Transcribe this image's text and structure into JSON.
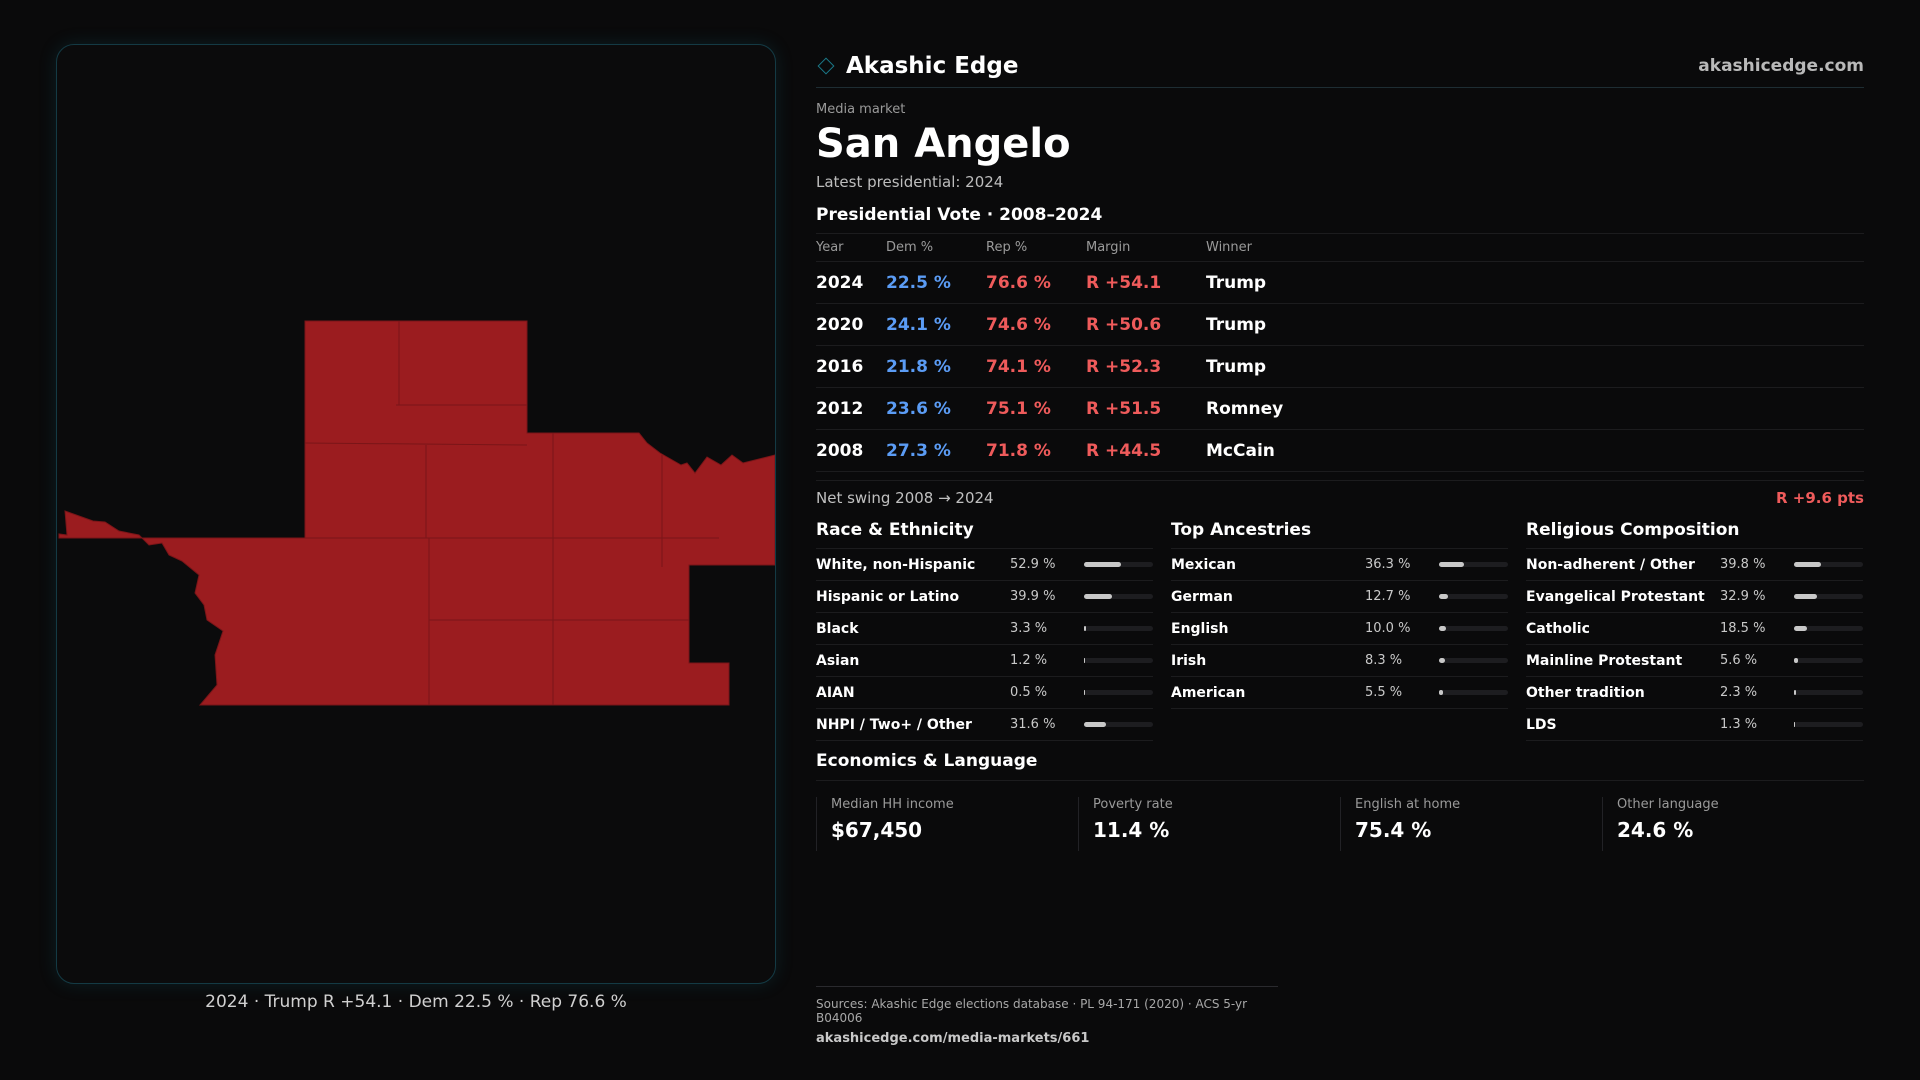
{
  "brand": {
    "name": "Akashic Edge",
    "site": "akashicedge.com",
    "icon": "diamond-icon",
    "accent": "#1b7a8a"
  },
  "market": {
    "kicker": "Media market",
    "name": "San Angelo",
    "latest": "Latest presidential: 2024"
  },
  "votes": {
    "title": "Presidential Vote · 2008–2024",
    "headers": {
      "year": "Year",
      "dem": "Dem %",
      "rep": "Rep %",
      "margin": "Margin",
      "winner": "Winner"
    },
    "rows": [
      {
        "year": "2024",
        "dem": "22.5 %",
        "rep": "76.6 %",
        "margin": "R +54.1",
        "winner": "Trump"
      },
      {
        "year": "2020",
        "dem": "24.1 %",
        "rep": "74.6 %",
        "margin": "R +50.6",
        "winner": "Trump"
      },
      {
        "year": "2016",
        "dem": "21.8 %",
        "rep": "74.1 %",
        "margin": "R +52.3",
        "winner": "Trump"
      },
      {
        "year": "2012",
        "dem": "23.6 %",
        "rep": "75.1 %",
        "margin": "R +51.5",
        "winner": "Romney"
      },
      {
        "year": "2008",
        "dem": "27.3 %",
        "rep": "71.8 %",
        "margin": "R +44.5",
        "winner": "McCain"
      }
    ],
    "colors": {
      "dem": "#5b9cf5",
      "rep": "#ef5b5b"
    }
  },
  "swing": {
    "label": "Net swing 2008 → 2024",
    "value": "R +9.6 pts"
  },
  "race": {
    "title": "Race & Ethnicity",
    "rows": [
      {
        "label": "White, non-Hispanic",
        "value": "52.9 %",
        "pct": 52.9
      },
      {
        "label": "Hispanic or Latino",
        "value": "39.9 %",
        "pct": 39.9
      },
      {
        "label": "Black",
        "value": "3.3 %",
        "pct": 3.3
      },
      {
        "label": "Asian",
        "value": "1.2 %",
        "pct": 1.2
      },
      {
        "label": "AIAN",
        "value": "0.5 %",
        "pct": 0.5
      },
      {
        "label": "NHPI / Two+ / Other",
        "value": "31.6 %",
        "pct": 31.6
      }
    ]
  },
  "ancestry": {
    "title": "Top Ancestries",
    "rows": [
      {
        "label": "Mexican",
        "value": "36.3 %",
        "pct": 36.3
      },
      {
        "label": "German",
        "value": "12.7 %",
        "pct": 12.7
      },
      {
        "label": "English",
        "value": "10.0 %",
        "pct": 10.0
      },
      {
        "label": "Irish",
        "value": "8.3 %",
        "pct": 8.3
      },
      {
        "label": "American",
        "value": "5.5 %",
        "pct": 5.5
      }
    ]
  },
  "religion": {
    "title": "Religious Composition",
    "rows": [
      {
        "label": "Non-adherent / Other",
        "value": "39.8 %",
        "pct": 39.8
      },
      {
        "label": "Evangelical Protestant",
        "value": "32.9 %",
        "pct": 32.9
      },
      {
        "label": "Catholic",
        "value": "18.5 %",
        "pct": 18.5
      },
      {
        "label": "Mainline Protestant",
        "value": "5.6 %",
        "pct": 5.6
      },
      {
        "label": "Other tradition",
        "value": "2.3 %",
        "pct": 2.3
      },
      {
        "label": "LDS",
        "value": "1.3 %",
        "pct": 1.3
      }
    ]
  },
  "economics": {
    "title": "Economics & Language",
    "items": [
      {
        "label": "Median HH income",
        "value": "$67,450"
      },
      {
        "label": "Poverty rate",
        "value": "11.4 %"
      },
      {
        "label": "English at home",
        "value": "75.4 %"
      },
      {
        "label": "Other language",
        "value": "24.6 %"
      }
    ]
  },
  "map": {
    "caption": "2024 · Trump R +54.1 · Dem 22.5 % · Rep 76.6 %",
    "fill": "#9b1c1f"
  },
  "sources": {
    "text": "Sources: Akashic Edge elections database · PL 94-171 (2020) · ACS 5-yr B04006",
    "url": "akashicedge.com/media-markets/661"
  }
}
